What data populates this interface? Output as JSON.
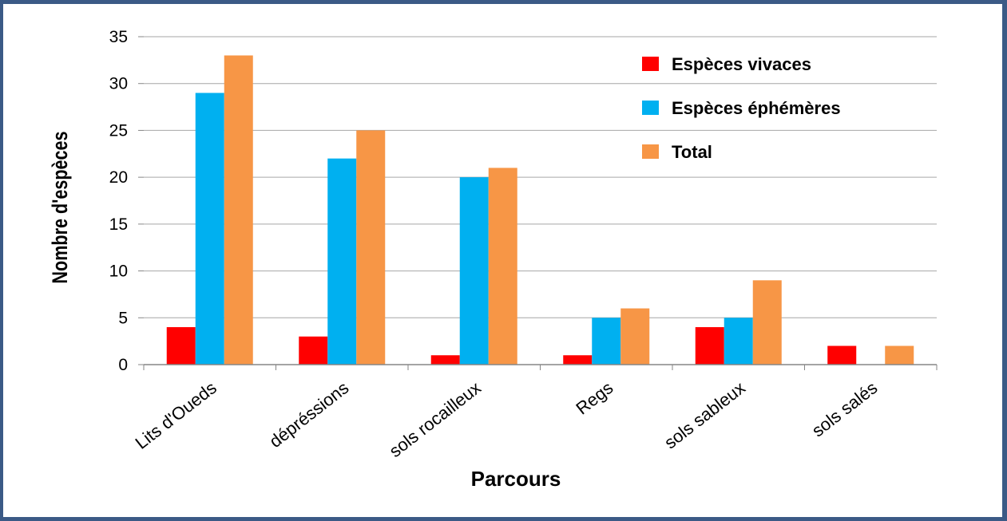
{
  "chart_data": {
    "type": "bar",
    "categories": [
      "Lits d'Oueds",
      "dépréssions",
      "sols rocailleux",
      "Regs",
      "sols sableux",
      "sols salés"
    ],
    "series": [
      {
        "name": "Espèces vivaces",
        "color": "#ff0000",
        "values": [
          4,
          3,
          1,
          1,
          4,
          2
        ]
      },
      {
        "name": "Espèces éphémères",
        "color": "#00b0f0",
        "values": [
          29,
          22,
          20,
          5,
          5,
          0
        ]
      },
      {
        "name": "Total",
        "color": "#f79646",
        "values": [
          33,
          25,
          21,
          6,
          9,
          2
        ]
      }
    ],
    "xlabel": "Parcours",
    "ylabel": "Nombre d'espèces",
    "ylim": [
      0,
      35
    ],
    "yticks": [
      0,
      5,
      10,
      15,
      20,
      25,
      30,
      35
    ],
    "grid": true,
    "legend_position": "top-right"
  }
}
